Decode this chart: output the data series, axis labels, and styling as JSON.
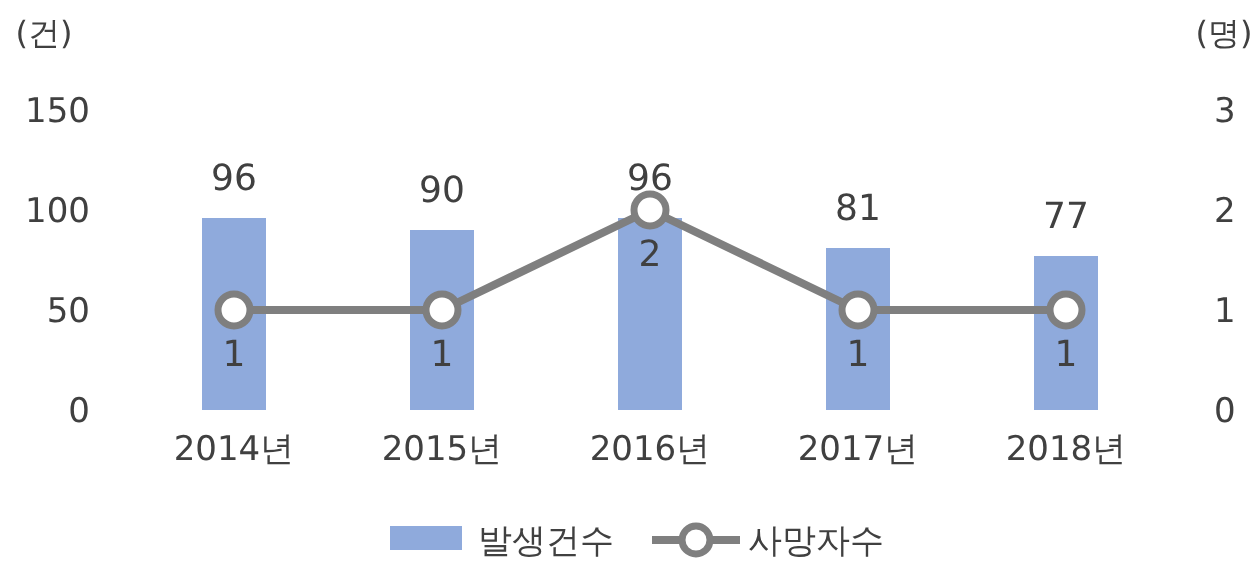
{
  "chart_data": {
    "type": "bar",
    "categories": [
      "2014년",
      "2015년",
      "2016년",
      "2017년",
      "2018년"
    ],
    "series": [
      {
        "name": "발생건수",
        "color": "#8faadc",
        "values": [
          96,
          90,
          96,
          81,
          77
        ]
      },
      {
        "type": "line",
        "name": "사망자수",
        "color": "#7f7f7f",
        "values": [
          1,
          1,
          2,
          1,
          1
        ],
        "axis": "y2"
      }
    ],
    "ylim": [
      0,
      150
    ],
    "yticks": [
      0,
      50,
      100,
      150
    ],
    "y2lim": [
      0,
      3
    ],
    "y2ticks": [
      0,
      1,
      2,
      3
    ],
    "ylabel": "(건)",
    "y2label": "(명)",
    "legend": "bottom",
    "data_labels": true,
    "marker": "circle"
  }
}
